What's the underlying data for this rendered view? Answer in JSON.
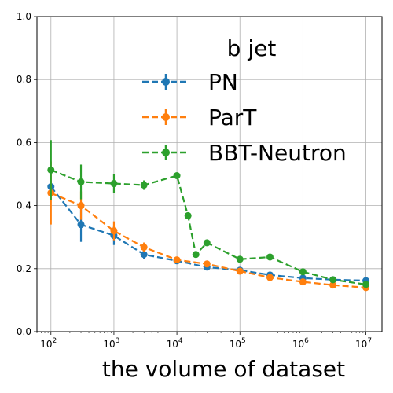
{
  "chart_data": {
    "type": "line",
    "x_scale": "log",
    "xlabel": "the volume of dataset",
    "ylabel": "",
    "xlim": [
      60,
      18000000
    ],
    "ylim": [
      0.0,
      1.0
    ],
    "grid": true,
    "y_ticks": [
      "0.0",
      "0.2",
      "0.4",
      "0.6",
      "0.8",
      "1.0"
    ],
    "x_ticks": [
      {
        "value": 100,
        "base": "10",
        "exp": "2"
      },
      {
        "value": 1000,
        "base": "10",
        "exp": "3"
      },
      {
        "value": 10000,
        "base": "10",
        "exp": "4"
      },
      {
        "value": 100000,
        "base": "10",
        "exp": "5"
      },
      {
        "value": 1000000,
        "base": "10",
        "exp": "6"
      },
      {
        "value": 10000000,
        "base": "10",
        "exp": "7"
      }
    ],
    "legend": {
      "title": "b jet",
      "position": "upper right"
    },
    "series": [
      {
        "name": "PN",
        "color": "#1f77b4",
        "x": [
          100,
          300,
          1000,
          3000,
          10000,
          30000,
          100000,
          300000,
          1000000,
          3000000,
          10000000
        ],
        "y": [
          0.46,
          0.34,
          0.305,
          0.245,
          0.225,
          0.205,
          0.195,
          0.18,
          0.17,
          0.165,
          0.162
        ],
        "err": [
          0.02,
          0.055,
          0.03,
          0.015,
          0.01,
          0.01,
          0.008,
          0.008,
          0.005,
          0.005,
          0.005
        ]
      },
      {
        "name": "ParT",
        "color": "#ff7f0e",
        "x": [
          100,
          300,
          1000,
          3000,
          10000,
          30000,
          100000,
          300000,
          1000000,
          3000000,
          10000000
        ],
        "y": [
          0.44,
          0.4,
          0.32,
          0.268,
          0.228,
          0.215,
          0.192,
          0.172,
          0.158,
          0.148,
          0.14
        ],
        "err": [
          0.1,
          0.045,
          0.03,
          0.015,
          0.01,
          0.008,
          0.008,
          0.007,
          0.005,
          0.005,
          0.005
        ]
      },
      {
        "name": "BBT-Neutron",
        "color": "#2ca02c",
        "x": [
          100,
          300,
          1000,
          3000,
          10000,
          15000,
          20000,
          30000,
          100000,
          300000,
          1000000,
          3000000,
          10000000
        ],
        "y": [
          0.513,
          0.475,
          0.47,
          0.465,
          0.495,
          0.368,
          0.245,
          0.282,
          0.23,
          0.237,
          0.19,
          0.165,
          0.15
        ],
        "err": [
          0.095,
          0.055,
          0.03,
          0.015,
          0.01,
          0.01,
          0.008,
          0.01,
          0.008,
          0.008,
          0.008,
          0.006,
          0.006
        ]
      }
    ]
  }
}
